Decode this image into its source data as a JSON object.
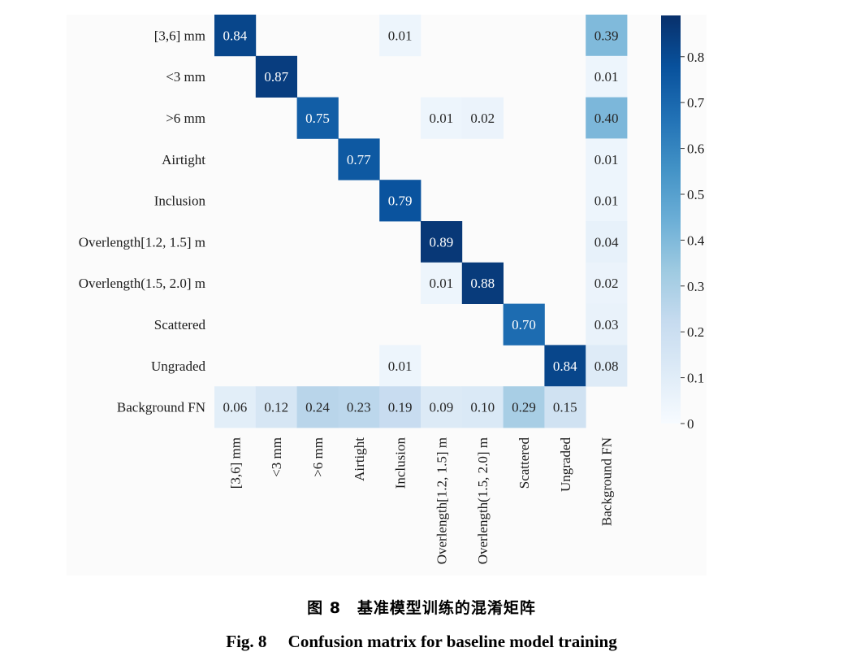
{
  "chart_data": {
    "type": "heatmap",
    "row_labels": [
      "[3,6] mm",
      "<3 mm",
      ">6 mm",
      "Airtight",
      "Inclusion",
      "Overlength[1.2, 1.5] m",
      "Overlength(1.5, 2.0] m",
      "Scattered",
      "Ungraded",
      "Background FN"
    ],
    "col_labels": [
      "[3,6] mm",
      "<3 mm",
      ">6 mm",
      "Airtight",
      "Inclusion",
      "Overlength[1.2, 1.5] m",
      "Overlength(1.5, 2.0] m",
      "Scattered",
      "Ungraded",
      "Background FN"
    ],
    "values": [
      [
        0.84,
        null,
        null,
        null,
        0.01,
        null,
        null,
        null,
        null,
        0.39
      ],
      [
        null,
        0.87,
        null,
        null,
        null,
        null,
        null,
        null,
        null,
        0.01
      ],
      [
        null,
        null,
        0.75,
        null,
        null,
        0.01,
        0.02,
        null,
        null,
        0.4
      ],
      [
        null,
        null,
        null,
        0.77,
        null,
        null,
        null,
        null,
        null,
        0.01
      ],
      [
        null,
        null,
        null,
        null,
        0.79,
        null,
        null,
        null,
        null,
        0.01
      ],
      [
        null,
        null,
        null,
        null,
        null,
        0.89,
        null,
        null,
        null,
        0.04
      ],
      [
        null,
        null,
        null,
        null,
        null,
        0.01,
        0.88,
        null,
        null,
        0.02
      ],
      [
        null,
        null,
        null,
        null,
        null,
        null,
        null,
        0.7,
        null,
        0.03
      ],
      [
        null,
        null,
        null,
        null,
        0.01,
        null,
        null,
        null,
        0.84,
        0.08
      ],
      [
        0.06,
        0.12,
        0.24,
        0.23,
        0.19,
        0.09,
        0.1,
        0.29,
        0.15,
        null
      ]
    ],
    "colorbar": {
      "min": 0,
      "max": 0.89,
      "ticks": [
        "0",
        "0.1",
        "0.2",
        "0.3",
        "0.4",
        "0.5",
        "0.6",
        "0.7",
        "0.8"
      ]
    },
    "colormap": "Blues"
  },
  "caption": {
    "zh": "图 8　基准模型训练的混淆矩阵",
    "en": "Fig. 8　 Confusion matrix for baseline model training"
  }
}
